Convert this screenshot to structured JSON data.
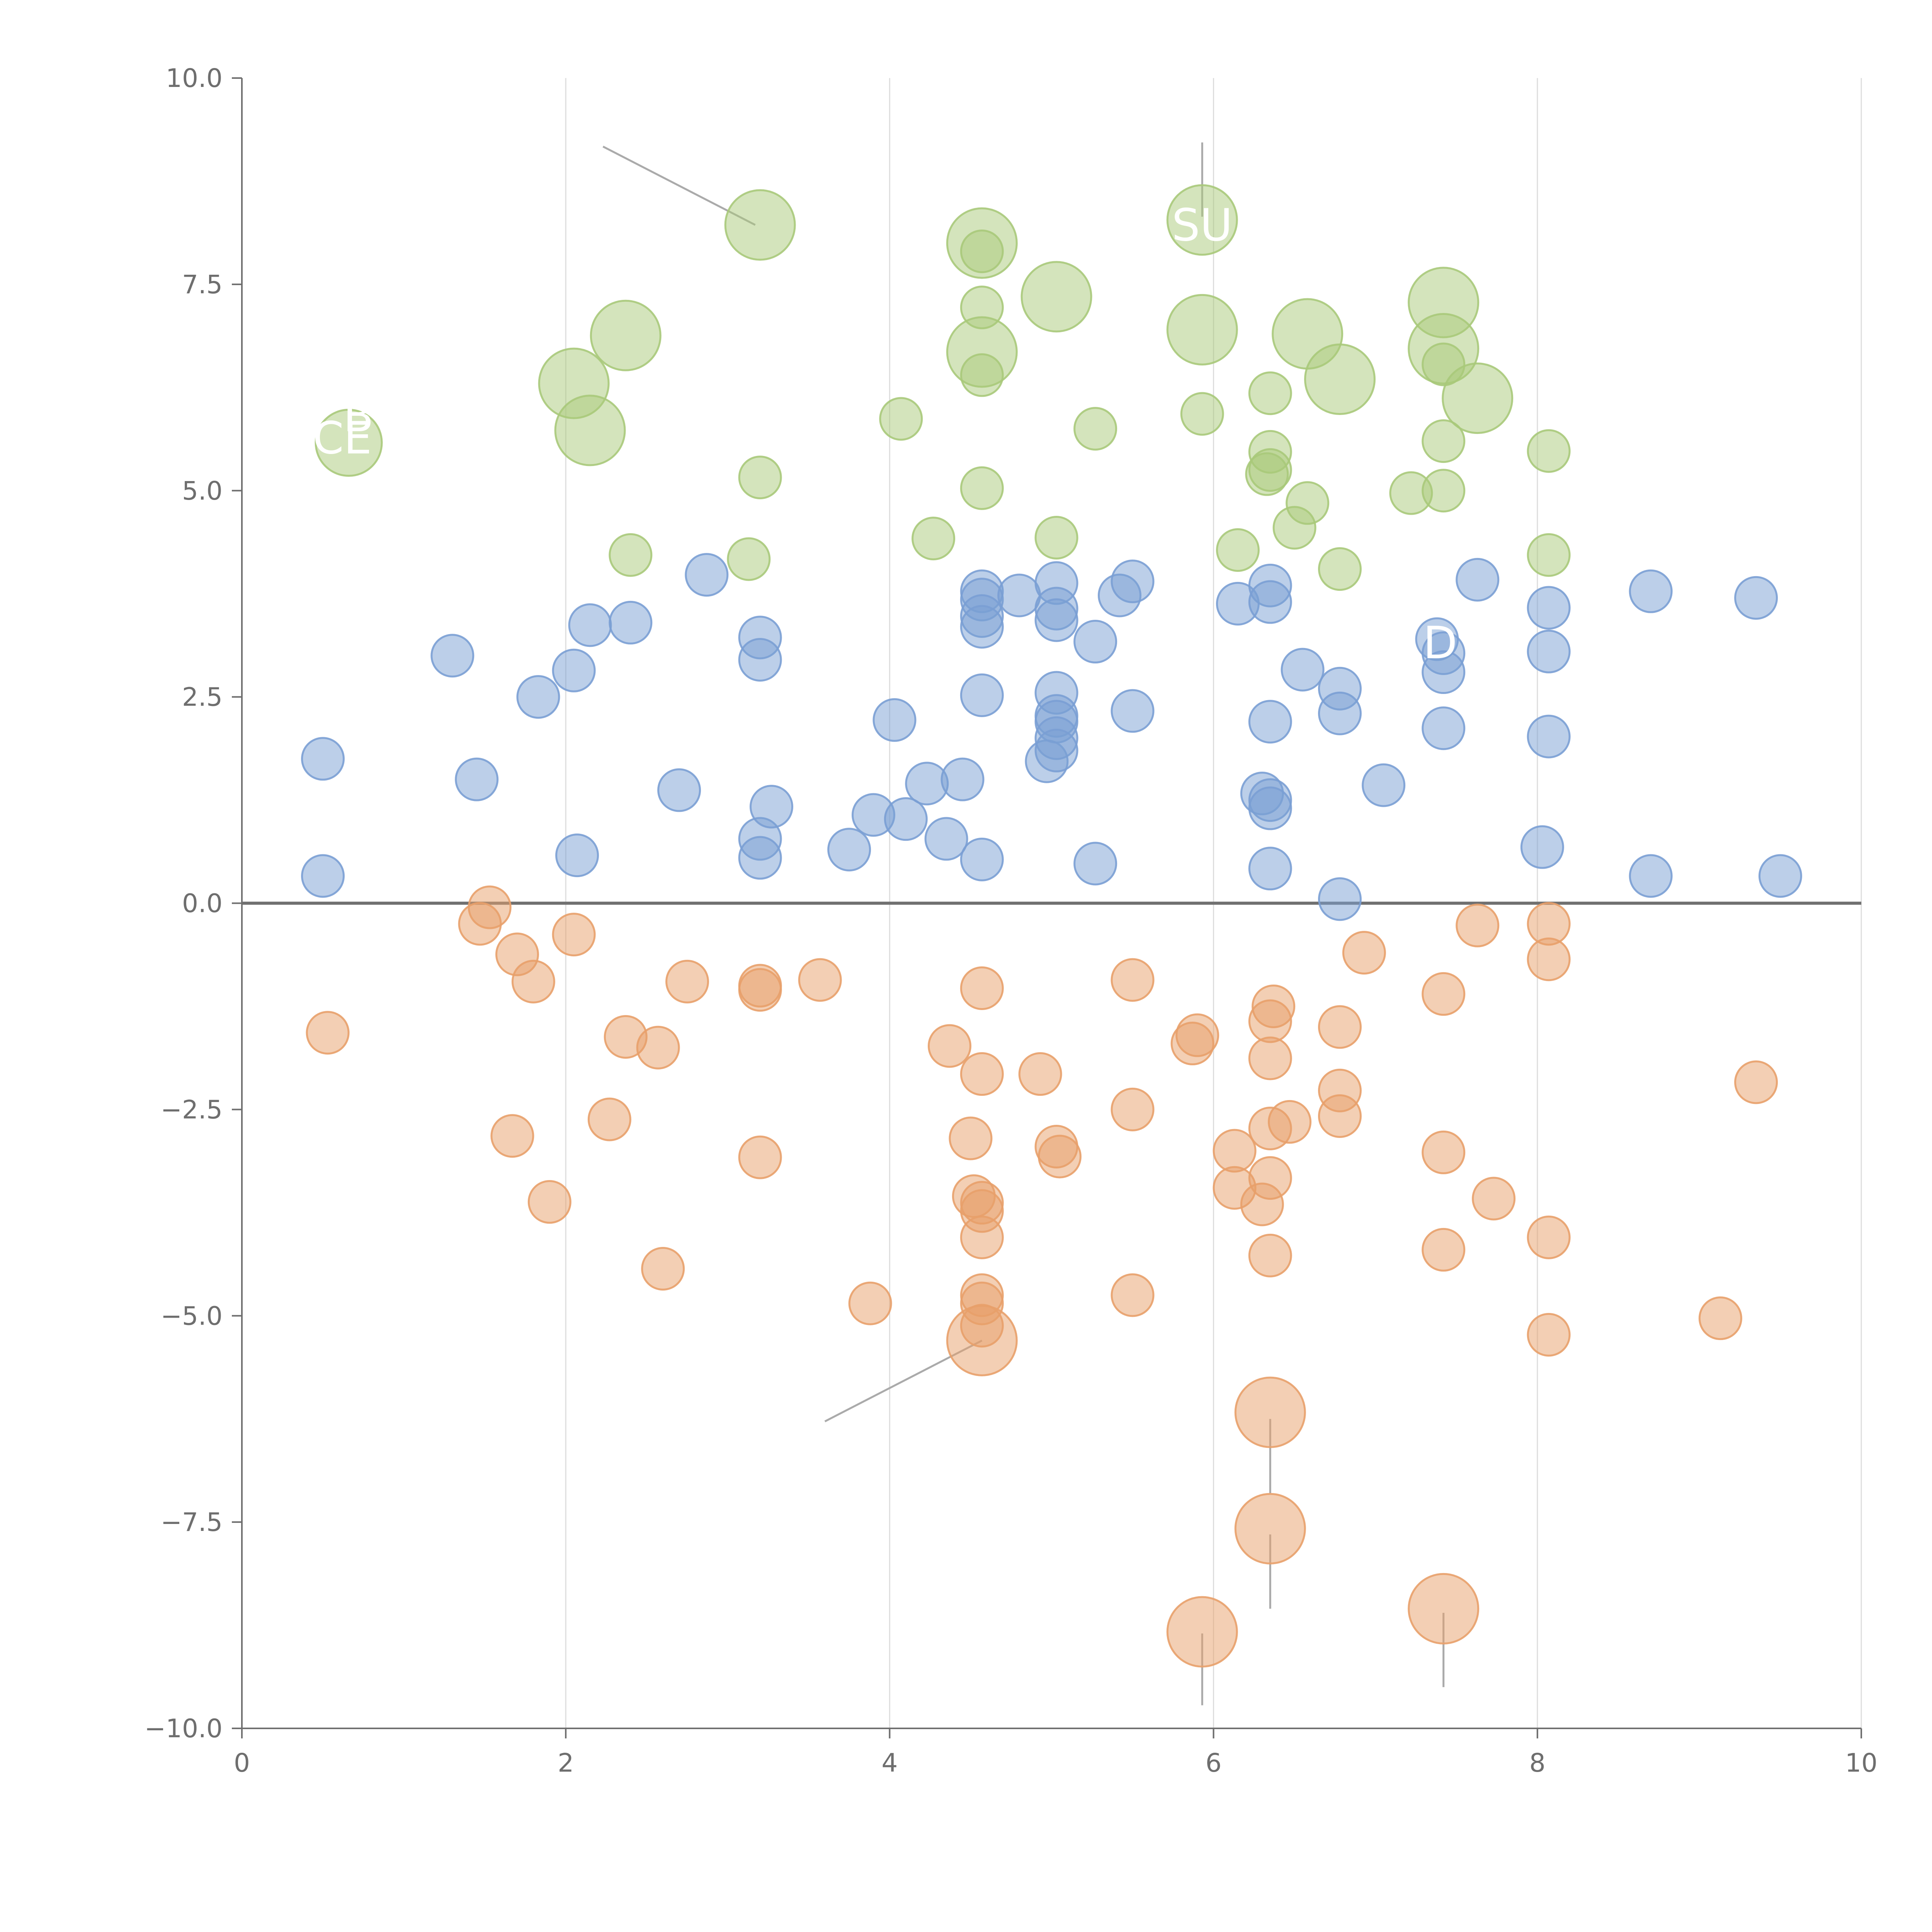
{
  "chart_data": {
    "type": "scatter",
    "title": "",
    "xlabel": "",
    "ylabel": "",
    "xlim": [
      0,
      10
    ],
    "ylim": [
      -10,
      10
    ],
    "x_ticks": [
      0,
      2,
      4,
      6,
      8,
      10
    ],
    "x_tick_labels": [
      "0",
      "2",
      "4",
      "6",
      "8",
      "10"
    ],
    "y_ticks": [
      -10,
      -7.5,
      -5,
      -2.5,
      0,
      2.5,
      5,
      7.5,
      10
    ],
    "y_tick_labels": [
      "−10.0",
      "−7.5",
      "−5.0",
      "−2.5",
      "0.0",
      "2.5",
      "5.0",
      "7.5",
      "10.0"
    ],
    "vertical_grid": true,
    "horizontal_grid": false,
    "baseline_y": 0,
    "colors": {
      "green": "#a9c97a",
      "blue": "#7a9fd4",
      "orange": "#e8a06a",
      "gridline": "#dddddd",
      "axis": "#6e6e6e",
      "baseline": "#707070",
      "leader": "#aaaaaa"
    },
    "series": [
      {
        "color_key": "green",
        "points": [
          [
            0.66,
            5.58,
            0.95
          ],
          [
            2.05,
            6.3,
            1.0
          ],
          [
            2.15,
            5.73,
            1.0
          ],
          [
            2.37,
            6.88,
            1.0
          ],
          [
            2.4,
            4.22,
            0.6
          ],
          [
            3.13,
            4.17,
            0.6
          ],
          [
            3.2,
            5.16,
            0.6
          ],
          [
            3.2,
            8.22,
            1.0
          ],
          [
            4.07,
            5.87,
            0.6
          ],
          [
            4.27,
            4.42,
            0.6
          ],
          [
            4.57,
            8.0,
            1.0
          ],
          [
            4.57,
            7.9,
            0.6
          ],
          [
            4.57,
            7.22,
            0.6
          ],
          [
            4.57,
            6.68,
            1.0
          ],
          [
            4.57,
            6.4,
            0.6
          ],
          [
            4.57,
            5.03,
            0.6
          ],
          [
            5.03,
            7.35,
            1.0
          ],
          [
            5.03,
            4.43,
            0.6
          ],
          [
            5.27,
            5.75,
            0.6
          ],
          [
            5.93,
            8.28,
            1.0
          ],
          [
            5.93,
            6.95,
            1.0
          ],
          [
            5.93,
            5.93,
            0.6
          ],
          [
            6.15,
            4.28,
            0.6
          ],
          [
            6.35,
            6.18,
            0.6
          ],
          [
            6.35,
            5.47,
            0.6
          ],
          [
            6.35,
            5.25,
            0.6
          ],
          [
            6.33,
            5.2,
            0.6
          ],
          [
            6.5,
            4.55,
            0.6
          ],
          [
            6.58,
            4.85,
            0.6
          ],
          [
            6.58,
            6.9,
            1.0
          ],
          [
            6.78,
            6.35,
            1.0
          ],
          [
            6.78,
            4.05,
            0.6
          ],
          [
            7.22,
            4.97,
            0.6
          ],
          [
            7.42,
            7.28,
            1.0
          ],
          [
            7.42,
            6.72,
            1.0
          ],
          [
            7.42,
            6.53,
            0.6
          ],
          [
            7.42,
            5.6,
            0.6
          ],
          [
            7.42,
            5.0,
            0.6
          ],
          [
            7.63,
            6.12,
            1.0
          ],
          [
            8.07,
            5.48,
            0.6
          ],
          [
            8.07,
            4.22,
            0.6
          ]
        ]
      },
      {
        "color_key": "blue",
        "points": [
          [
            0.5,
            1.75,
            0.6
          ],
          [
            0.5,
            0.33,
            0.6
          ],
          [
            1.3,
            3.0,
            0.6
          ],
          [
            1.45,
            1.5,
            0.6
          ],
          [
            1.83,
            2.5,
            0.6
          ],
          [
            2.05,
            2.82,
            0.6
          ],
          [
            2.07,
            0.58,
            0.6
          ],
          [
            2.15,
            3.37,
            0.6
          ],
          [
            2.4,
            3.4,
            0.6
          ],
          [
            2.7,
            1.37,
            0.6
          ],
          [
            2.87,
            3.98,
            0.6
          ],
          [
            3.2,
            3.22,
            0.6
          ],
          [
            3.2,
            2.95,
            0.6
          ],
          [
            3.2,
            0.78,
            0.6
          ],
          [
            3.2,
            0.55,
            0.6
          ],
          [
            3.27,
            1.17,
            0.6
          ],
          [
            3.75,
            0.65,
            0.6
          ],
          [
            3.9,
            1.07,
            0.6
          ],
          [
            4.03,
            2.22,
            0.6
          ],
          [
            4.1,
            1.02,
            0.6
          ],
          [
            4.23,
            1.45,
            0.6
          ],
          [
            4.35,
            0.78,
            0.6
          ],
          [
            4.45,
            1.5,
            0.6
          ],
          [
            4.57,
            3.78,
            0.6
          ],
          [
            4.57,
            3.68,
            0.6
          ],
          [
            4.57,
            3.48,
            0.6
          ],
          [
            4.57,
            3.35,
            0.6
          ],
          [
            4.57,
            2.52,
            0.6
          ],
          [
            4.57,
            0.53,
            0.6
          ],
          [
            4.8,
            3.73,
            0.6
          ],
          [
            4.97,
            1.72,
            0.6
          ],
          [
            5.03,
            3.88,
            0.6
          ],
          [
            5.03,
            3.57,
            0.6
          ],
          [
            5.03,
            3.43,
            0.6
          ],
          [
            5.03,
            2.55,
            0.6
          ],
          [
            5.03,
            2.27,
            0.6
          ],
          [
            5.03,
            2.2,
            0.6
          ],
          [
            5.03,
            2.0,
            0.6
          ],
          [
            5.03,
            1.85,
            0.6
          ],
          [
            5.27,
            3.17,
            0.6
          ],
          [
            5.27,
            0.48,
            0.6
          ],
          [
            5.42,
            3.73,
            0.6
          ],
          [
            5.5,
            3.9,
            0.6
          ],
          [
            5.5,
            2.33,
            0.6
          ],
          [
            6.15,
            3.63,
            0.6
          ],
          [
            6.35,
            3.85,
            0.6
          ],
          [
            6.35,
            3.65,
            0.6
          ],
          [
            6.35,
            2.2,
            0.6
          ],
          [
            6.3,
            1.33,
            0.6
          ],
          [
            6.35,
            1.25,
            0.6
          ],
          [
            6.35,
            1.15,
            0.6
          ],
          [
            6.35,
            0.42,
            0.6
          ],
          [
            6.55,
            2.83,
            0.6
          ],
          [
            6.78,
            2.6,
            0.6
          ],
          [
            6.78,
            2.3,
            0.6
          ],
          [
            6.78,
            0.05,
            0.6
          ],
          [
            7.05,
            1.43,
            0.6
          ],
          [
            7.38,
            3.2,
            0.6
          ],
          [
            7.42,
            3.03,
            0.6
          ],
          [
            7.42,
            2.8,
            0.6
          ],
          [
            7.42,
            2.12,
            0.6
          ],
          [
            7.63,
            3.92,
            0.6
          ],
          [
            8.07,
            3.58,
            0.6
          ],
          [
            8.07,
            3.05,
            0.6
          ],
          [
            8.07,
            2.02,
            0.6
          ],
          [
            8.03,
            0.68,
            0.6
          ],
          [
            8.7,
            3.78,
            0.6
          ],
          [
            8.7,
            0.33,
            0.6
          ],
          [
            9.35,
            3.7,
            0.6
          ],
          [
            9.5,
            0.33,
            0.6
          ]
        ]
      },
      {
        "color_key": "orange",
        "points": [
          [
            0.53,
            -1.57,
            0.6
          ],
          [
            1.47,
            -0.25,
            0.6
          ],
          [
            1.53,
            -0.05,
            0.6
          ],
          [
            1.7,
            -0.62,
            0.6
          ],
          [
            1.67,
            -2.82,
            0.6
          ],
          [
            1.8,
            -0.95,
            0.6
          ],
          [
            1.9,
            -3.62,
            0.6
          ],
          [
            2.05,
            -0.38,
            0.6
          ],
          [
            2.27,
            -2.62,
            0.6
          ],
          [
            2.37,
            -1.62,
            0.6
          ],
          [
            2.57,
            -1.75,
            0.6
          ],
          [
            2.6,
            -4.43,
            0.6
          ],
          [
            2.75,
            -0.95,
            0.6
          ],
          [
            3.2,
            -1.0,
            0.6
          ],
          [
            3.2,
            -1.05,
            0.6
          ],
          [
            3.2,
            -3.08,
            0.6
          ],
          [
            3.57,
            -0.93,
            0.6
          ],
          [
            3.88,
            -4.85,
            0.6
          ],
          [
            4.37,
            -1.73,
            0.6
          ],
          [
            4.5,
            -2.85,
            0.6
          ],
          [
            4.52,
            -3.55,
            0.6
          ],
          [
            4.57,
            -1.03,
            0.6
          ],
          [
            4.57,
            -2.07,
            0.6
          ],
          [
            4.57,
            -3.63,
            0.6
          ],
          [
            4.57,
            -3.73,
            0.6
          ],
          [
            4.57,
            -4.05,
            0.6
          ],
          [
            4.57,
            -4.75,
            0.6
          ],
          [
            4.57,
            -4.85,
            0.6
          ],
          [
            4.57,
            -5.12,
            0.6
          ],
          [
            4.57,
            -5.3,
            1.0
          ],
          [
            4.93,
            -2.07,
            0.6
          ],
          [
            5.03,
            -2.95,
            0.6
          ],
          [
            5.05,
            -3.07,
            0.6
          ],
          [
            5.5,
            -0.93,
            0.6
          ],
          [
            5.5,
            -2.5,
            0.6
          ],
          [
            5.5,
            -4.75,
            0.6
          ],
          [
            5.9,
            -1.6,
            0.6
          ],
          [
            5.87,
            -1.7,
            0.6
          ],
          [
            5.93,
            -8.83,
            1.0
          ],
          [
            6.13,
            -3.0,
            0.6
          ],
          [
            6.13,
            -3.45,
            0.6
          ],
          [
            6.37,
            -1.25,
            0.6
          ],
          [
            6.35,
            -1.43,
            0.6
          ],
          [
            6.35,
            -1.88,
            0.6
          ],
          [
            6.35,
            -2.73,
            0.6
          ],
          [
            6.47,
            -2.65,
            0.6
          ],
          [
            6.35,
            -3.33,
            0.6
          ],
          [
            6.3,
            -3.65,
            0.6
          ],
          [
            6.35,
            -4.27,
            0.6
          ],
          [
            6.35,
            -6.17,
            1.0
          ],
          [
            6.35,
            -7.58,
            1.0
          ],
          [
            6.78,
            -1.5,
            0.6
          ],
          [
            6.78,
            -2.27,
            0.6
          ],
          [
            6.78,
            -2.58,
            0.6
          ],
          [
            6.93,
            -0.6,
            0.6
          ],
          [
            7.42,
            -1.1,
            0.6
          ],
          [
            7.42,
            -3.02,
            0.6
          ],
          [
            7.42,
            -4.2,
            0.6
          ],
          [
            7.42,
            -8.55,
            1.0
          ],
          [
            7.63,
            -0.27,
            0.6
          ],
          [
            7.73,
            -3.58,
            0.6
          ],
          [
            8.07,
            -0.25,
            0.6
          ],
          [
            8.07,
            -0.68,
            0.6
          ],
          [
            8.07,
            -4.05,
            0.6
          ],
          [
            8.07,
            -5.23,
            0.6
          ],
          [
            9.13,
            -5.03,
            0.6
          ],
          [
            9.35,
            -2.17,
            0.6
          ]
        ]
      }
    ],
    "leader_lines": [
      [
        [
          2.23,
          9.17
        ],
        [
          3.17,
          8.22
        ]
      ],
      [
        [
          5.93,
          9.22
        ],
        [
          5.93,
          8.32
        ]
      ],
      [
        [
          4.57,
          -5.3
        ],
        [
          3.6,
          -6.28
        ]
      ],
      [
        [
          6.35,
          -6.25
        ],
        [
          6.35,
          -7.15
        ]
      ],
      [
        [
          6.35,
          -7.65
        ],
        [
          6.35,
          -8.55
        ]
      ],
      [
        [
          5.93,
          -8.85
        ],
        [
          5.93,
          -9.72
        ]
      ],
      [
        [
          7.42,
          -8.6
        ],
        [
          7.42,
          -9.5
        ]
      ]
    ],
    "annotations": [
      {
        "text": "SU",
        "x": 5.93,
        "y": 8.03
      },
      {
        "text": "B",
        "x": 0.72,
        "y": 5.72
      },
      {
        "text": "CE",
        "x": 0.62,
        "y": 5.45
      },
      {
        "text": "D",
        "x": 7.4,
        "y": 2.97
      }
    ]
  }
}
